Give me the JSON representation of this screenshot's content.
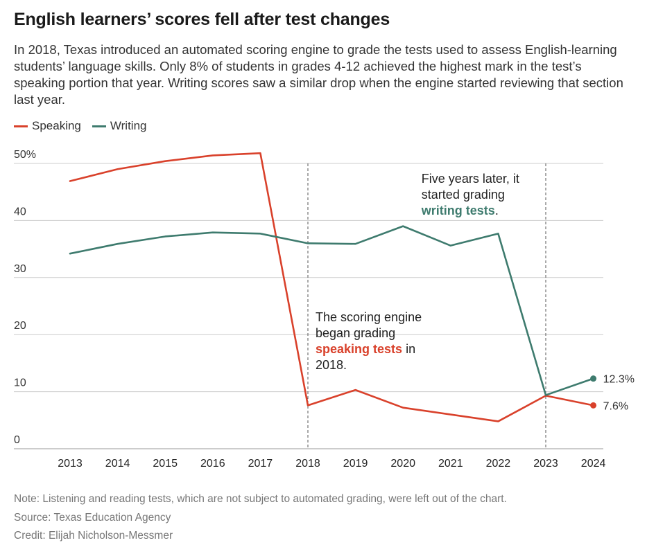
{
  "header": {
    "title": "English learners’ scores fell after test changes",
    "subtitle": "In 2018, Texas introduced an automated scoring engine to grade the tests used to assess English-learning students’ language skills. Only 8% of students in grades 4-12 achieved the highest mark in the test’s speaking portion that year. Writing scores saw a similar drop when the engine started reviewing that section last year."
  },
  "colors": {
    "speaking": "#d9412b",
    "writing": "#3e7b6e",
    "grid": "#cccccc",
    "vline": "#555555"
  },
  "chart_data": {
    "type": "line",
    "x": [
      2013,
      2014,
      2015,
      2016,
      2017,
      2018,
      2019,
      2020,
      2021,
      2022,
      2023,
      2024
    ],
    "series": [
      {
        "name": "Speaking",
        "values": [
          46.9,
          49.0,
          50.4,
          51.4,
          51.8,
          7.6,
          10.3,
          7.2,
          6.0,
          4.8,
          9.3,
          7.6
        ]
      },
      {
        "name": "Writing",
        "values": [
          34.2,
          35.9,
          37.2,
          37.9,
          37.7,
          36.0,
          35.9,
          39.0,
          35.6,
          37.7,
          9.4,
          12.3
        ]
      }
    ],
    "ylim": [
      0,
      50
    ],
    "yticks": [
      0,
      10,
      20,
      30,
      40,
      50
    ],
    "ytick_labels": [
      "0",
      "10",
      "20",
      "30",
      "40",
      "50%"
    ],
    "xtick_labels": [
      "2013",
      "2014",
      "2015",
      "2016",
      "2017",
      "2018",
      "2019",
      "2020",
      "2021",
      "2022",
      "2023",
      "2024"
    ],
    "end_labels": {
      "Speaking": "7.6%",
      "Writing": "12.3%"
    },
    "vlines": [
      2018,
      2023
    ],
    "grid": true,
    "legend": "top-left",
    "annotations": [
      {
        "x": 2018,
        "plain": "The scoring engine began grading",
        "highlight": "speaking tests",
        "after": "in 2018.",
        "series": "Speaking"
      },
      {
        "x": 2023,
        "plain": "Five years later, it started grading",
        "highlight": "writing tests",
        "after": ".",
        "series": "Writing"
      }
    ]
  },
  "footer": {
    "note": "Note: Listening and reading tests, which are not subject to automated grading, were left out of the chart.",
    "source": "Source: Texas Education Agency",
    "credit": "Credit: Elijah Nicholson-Messmer"
  }
}
